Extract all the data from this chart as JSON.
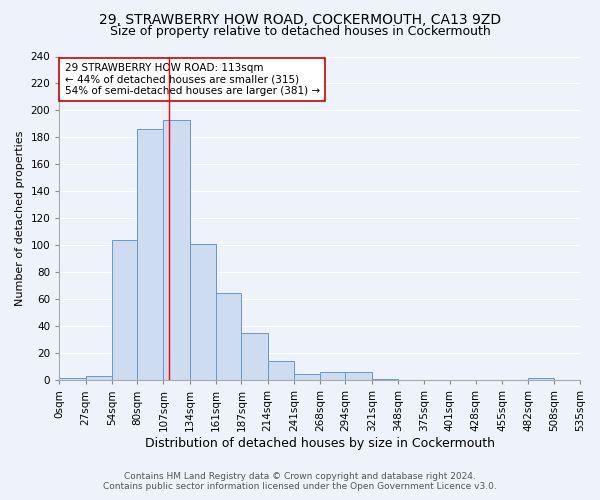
{
  "title1": "29, STRAWBERRY HOW ROAD, COCKERMOUTH, CA13 9ZD",
  "title2": "Size of property relative to detached houses in Cockermouth",
  "xlabel": "Distribution of detached houses by size in Cockermouth",
  "ylabel": "Number of detached properties",
  "bin_edges": [
    0,
    27,
    54,
    80,
    107,
    134,
    161,
    187,
    214,
    241,
    268,
    294,
    321,
    348,
    375,
    401,
    428,
    455,
    482,
    508,
    535
  ],
  "bar_heights": [
    2,
    3,
    104,
    186,
    193,
    101,
    65,
    35,
    14,
    5,
    6,
    6,
    1,
    0,
    0,
    0,
    0,
    0,
    2,
    0
  ],
  "bar_color": "#cddcf0",
  "bar_edgecolor": "#6699cc",
  "red_line_x": 113,
  "annotation_lines": [
    "29 STRAWBERRY HOW ROAD: 113sqm",
    "← 44% of detached houses are smaller (315)",
    "54% of semi-detached houses are larger (381) →"
  ],
  "annotation_box_color": "white",
  "annotation_box_edgecolor": "#cc0000",
  "ylim": [
    0,
    240
  ],
  "yticks": [
    0,
    20,
    40,
    60,
    80,
    100,
    120,
    140,
    160,
    180,
    200,
    220,
    240
  ],
  "xtick_labels": [
    "0sqm",
    "27sqm",
    "54sqm",
    "80sqm",
    "107sqm",
    "134sqm",
    "161sqm",
    "187sqm",
    "214sqm",
    "241sqm",
    "268sqm",
    "294sqm",
    "321sqm",
    "348sqm",
    "375sqm",
    "401sqm",
    "428sqm",
    "455sqm",
    "482sqm",
    "508sqm",
    "535sqm"
  ],
  "footer1": "Contains HM Land Registry data © Crown copyright and database right 2024.",
  "footer2": "Contains public sector information licensed under the Open Government Licence v3.0.",
  "bg_color": "#eef2fb",
  "grid_color": "#ffffff",
  "title1_fontsize": 10,
  "title2_fontsize": 9,
  "xlabel_fontsize": 9,
  "ylabel_fontsize": 8,
  "tick_fontsize": 7.5,
  "annotation_fontsize": 7.5,
  "footer_fontsize": 6.5
}
